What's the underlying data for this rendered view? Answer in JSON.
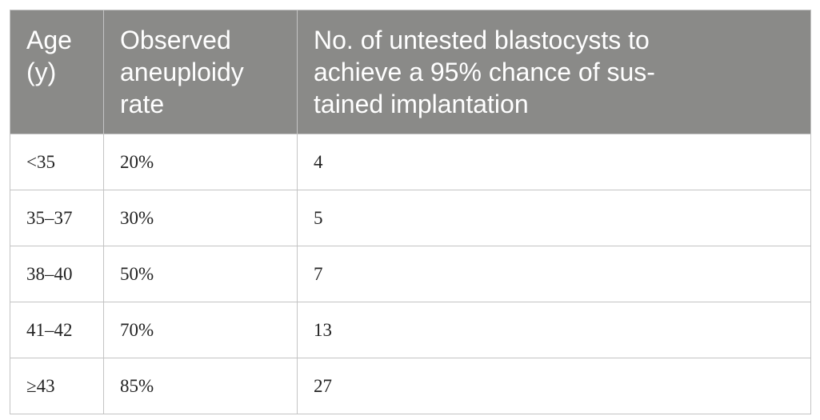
{
  "table": {
    "header": [
      [
        "Age",
        "(y)"
      ],
      [
        "Observed",
        "aneuploidy",
        "rate"
      ],
      [
        "No. of untested blastocysts to",
        "achieve a 95% chance of sus-",
        "tained implantation"
      ]
    ],
    "rows": [
      [
        "<35",
        "20%",
        "4"
      ],
      [
        "35–37",
        "30%",
        "5"
      ],
      [
        "38–40",
        "50%",
        "7"
      ],
      [
        "41–42",
        "70%",
        "13"
      ],
      [
        "≥43",
        "85%",
        "27"
      ]
    ]
  }
}
